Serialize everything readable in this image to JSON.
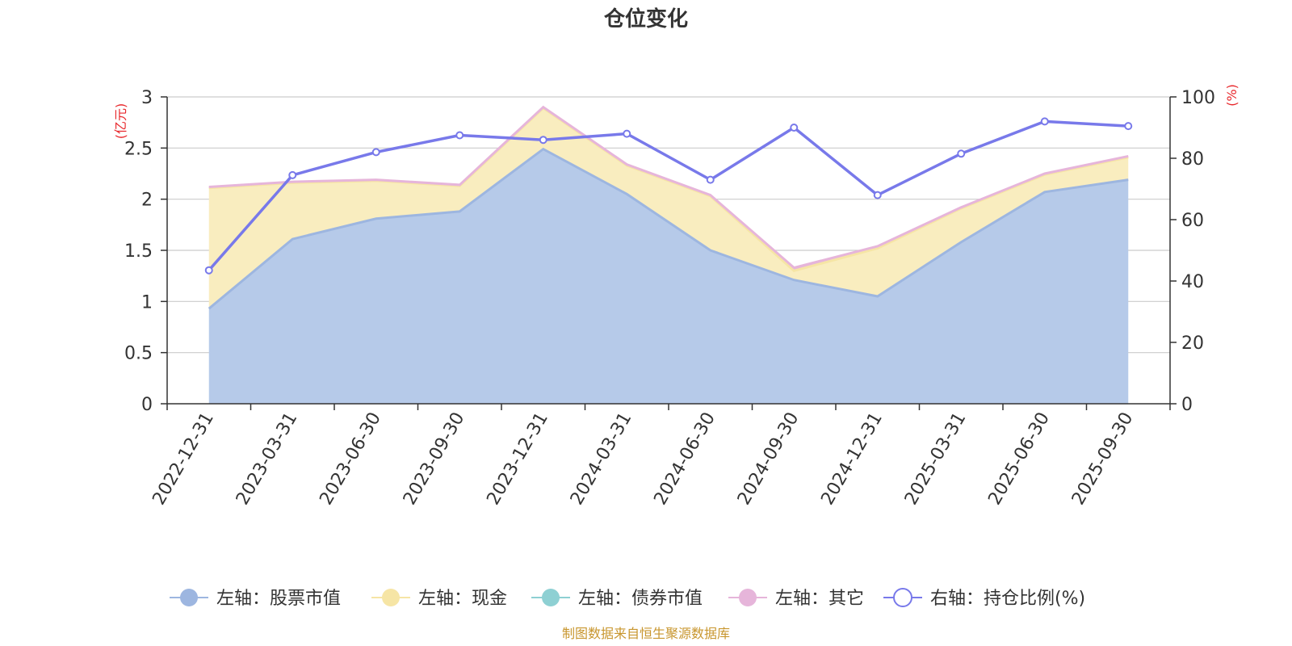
{
  "chart_data": {
    "type": "area",
    "title": "仓位变化",
    "categories": [
      "2022-12-31",
      "2023-03-31",
      "2023-06-30",
      "2023-09-30",
      "2023-12-31",
      "2024-03-31",
      "2024-06-30",
      "2024-09-30",
      "2024-12-31",
      "2025-03-31",
      "2025-06-30",
      "2025-09-30"
    ],
    "left_axis": {
      "unit": "(亿元)",
      "ylim": [
        0,
        3
      ],
      "ticks": [
        "0",
        "0.5",
        "1",
        "1.5",
        "2",
        "2.5",
        "3"
      ]
    },
    "right_axis": {
      "unit": "(%)",
      "ylim": [
        0,
        100
      ],
      "ticks": [
        "0",
        "20",
        "40",
        "60",
        "80",
        "100"
      ]
    },
    "series": [
      {
        "name": "左轴：股票市值",
        "axis": "left",
        "stacked": true,
        "color": "#9db6e0",
        "fill": "#b6cae9",
        "values": [
          0.93,
          1.61,
          1.81,
          1.88,
          2.49,
          2.05,
          1.5,
          1.21,
          1.05,
          1.58,
          2.07,
          2.19
        ]
      },
      {
        "name": "左轴：现金",
        "axis": "left",
        "stacked": true,
        "color": "#f6e5a5",
        "fill": "#f9edbf",
        "values": [
          1.18,
          0.55,
          0.37,
          0.25,
          0.4,
          0.28,
          0.53,
          0.09,
          0.47,
          0.33,
          0.17,
          0.22
        ]
      },
      {
        "name": "左轴：债券市值",
        "axis": "left",
        "stacked": true,
        "color": "#8ed0d3",
        "fill": "#8ed0d3",
        "values": [
          0,
          0,
          0,
          0,
          0,
          0,
          0,
          0,
          0,
          0,
          0,
          0
        ]
      },
      {
        "name": "左轴：其它",
        "axis": "left",
        "stacked": true,
        "color": "#e6b5da",
        "fill": "#e6b5da",
        "values": [
          0.01,
          0.01,
          0.01,
          0.01,
          0.01,
          0.01,
          0.01,
          0.03,
          0.02,
          0.01,
          0.01,
          0.01
        ]
      },
      {
        "name": "右轴：持仓比例(%)",
        "axis": "right",
        "type": "line",
        "color": "#7879ea",
        "values": [
          43.5,
          74.5,
          82.0,
          87.5,
          86.0,
          88.0,
          73.0,
          90.0,
          68.0,
          81.5,
          92.0,
          90.5
        ]
      }
    ],
    "source": "制图数据来自恒生聚源数据库"
  }
}
